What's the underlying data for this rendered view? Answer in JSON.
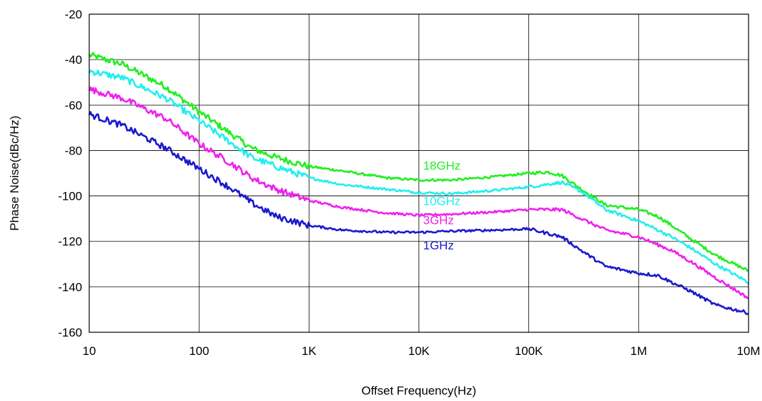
{
  "chart_data": {
    "type": "line",
    "x_scale": "log",
    "xlim": [
      10,
      10000000
    ],
    "ylim": [
      -160,
      -20
    ],
    "grid": true,
    "xlabel": "Offset Frequency(Hz)",
    "ylabel": "Phase Noise(dBc/Hz)",
    "x_ticks": [
      {
        "value": 10,
        "label": "10"
      },
      {
        "value": 100,
        "label": "100"
      },
      {
        "value": 1000,
        "label": "1K"
      },
      {
        "value": 10000,
        "label": "10K"
      },
      {
        "value": 100000,
        "label": "100K"
      },
      {
        "value": 1000000,
        "label": "1M"
      },
      {
        "value": 10000000,
        "label": "10M"
      }
    ],
    "y_ticks": [
      {
        "value": -20,
        "label": "-20"
      },
      {
        "value": -40,
        "label": "-40"
      },
      {
        "value": -60,
        "label": "-60"
      },
      {
        "value": -80,
        "label": "-80"
      },
      {
        "value": -100,
        "label": "-100"
      },
      {
        "value": -120,
        "label": "-120"
      },
      {
        "value": -140,
        "label": "-140"
      },
      {
        "value": -160,
        "label": "-160"
      }
    ],
    "series": [
      {
        "name": "18GHz",
        "color": "#22ee22",
        "label_at": [
          10000,
          -88.5
        ],
        "points": [
          [
            10,
            -38
          ],
          [
            20,
            -42
          ],
          [
            50,
            -52
          ],
          [
            100,
            -63
          ],
          [
            200,
            -73
          ],
          [
            300,
            -79
          ],
          [
            500,
            -83
          ],
          [
            1000,
            -87
          ],
          [
            2000,
            -89
          ],
          [
            5000,
            -92
          ],
          [
            10000,
            -93
          ],
          [
            20000,
            -93
          ],
          [
            50000,
            -91.5
          ],
          [
            100000,
            -90
          ],
          [
            150000,
            -89.5
          ],
          [
            200000,
            -91
          ],
          [
            300000,
            -97
          ],
          [
            500000,
            -104
          ],
          [
            1000000,
            -106
          ],
          [
            1500000,
            -109
          ],
          [
            2000000,
            -113
          ],
          [
            3000000,
            -119
          ],
          [
            5000000,
            -126
          ],
          [
            10000000,
            -133
          ]
        ]
      },
      {
        "name": "10GHz",
        "color": "#22eeee",
        "label_at": [
          10000,
          -104
        ],
        "points": [
          [
            10,
            -45
          ],
          [
            20,
            -48
          ],
          [
            50,
            -57
          ],
          [
            100,
            -67
          ],
          [
            200,
            -77
          ],
          [
            300,
            -83
          ],
          [
            500,
            -87
          ],
          [
            1000,
            -92
          ],
          [
            2000,
            -95
          ],
          [
            5000,
            -97
          ],
          [
            10000,
            -98.5
          ],
          [
            20000,
            -99
          ],
          [
            50000,
            -97.5
          ],
          [
            100000,
            -96
          ],
          [
            200000,
            -94
          ],
          [
            300000,
            -98
          ],
          [
            500000,
            -106
          ],
          [
            1000000,
            -111
          ],
          [
            1500000,
            -115
          ],
          [
            2000000,
            -118
          ],
          [
            3000000,
            -123
          ],
          [
            5000000,
            -130
          ],
          [
            10000000,
            -138
          ]
        ]
      },
      {
        "name": "3GHz",
        "color": "#ee22ee",
        "label_at": [
          10000,
          -112.5
        ],
        "points": [
          [
            10,
            -53
          ],
          [
            20,
            -57
          ],
          [
            50,
            -66
          ],
          [
            100,
            -77
          ],
          [
            200,
            -86
          ],
          [
            300,
            -92
          ],
          [
            500,
            -97
          ],
          [
            1000,
            -102
          ],
          [
            2000,
            -105
          ],
          [
            5000,
            -107.5
          ],
          [
            10000,
            -108.5
          ],
          [
            20000,
            -108
          ],
          [
            50000,
            -107
          ],
          [
            100000,
            -106
          ],
          [
            200000,
            -106
          ],
          [
            300000,
            -110
          ],
          [
            500000,
            -115
          ],
          [
            1000000,
            -118
          ],
          [
            2000000,
            -124
          ],
          [
            3000000,
            -129
          ],
          [
            5000000,
            -136
          ],
          [
            10000000,
            -145
          ]
        ]
      },
      {
        "name": "1GHz",
        "color": "#1a1acc",
        "label_at": [
          10000,
          -123.5
        ],
        "points": [
          [
            10,
            -64
          ],
          [
            20,
            -69
          ],
          [
            50,
            -79
          ],
          [
            100,
            -88
          ],
          [
            200,
            -97
          ],
          [
            300,
            -103
          ],
          [
            500,
            -109
          ],
          [
            1000,
            -113
          ],
          [
            2000,
            -115
          ],
          [
            5000,
            -116
          ],
          [
            10000,
            -116
          ],
          [
            20000,
            -115.5
          ],
          [
            50000,
            -115
          ],
          [
            100000,
            -114.5
          ],
          [
            200000,
            -118
          ],
          [
            300000,
            -124
          ],
          [
            500000,
            -131
          ],
          [
            1000000,
            -134
          ],
          [
            1500000,
            -135
          ],
          [
            2000000,
            -138
          ],
          [
            3000000,
            -142
          ],
          [
            5000000,
            -148
          ],
          [
            10000000,
            -151.5
          ]
        ]
      }
    ]
  }
}
